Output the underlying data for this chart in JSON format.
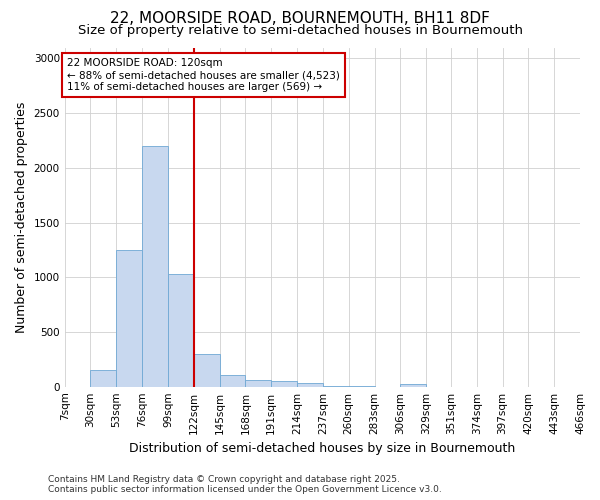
{
  "title_line1": "22, MOORSIDE ROAD, BOURNEMOUTH, BH11 8DF",
  "title_line2": "Size of property relative to semi-detached houses in Bournemouth",
  "xlabel": "Distribution of semi-detached houses by size in Bournemouth",
  "ylabel": "Number of semi-detached properties",
  "bin_labels": [
    "7sqm",
    "30sqm",
    "53sqm",
    "76sqm",
    "99sqm",
    "122sqm",
    "145sqm",
    "168sqm",
    "191sqm",
    "214sqm",
    "237sqm",
    "260sqm",
    "283sqm",
    "306sqm",
    "329sqm",
    "351sqm",
    "374sqm",
    "397sqm",
    "420sqm",
    "443sqm",
    "466sqm"
  ],
  "bin_edges": [
    7,
    30,
    53,
    76,
    99,
    122,
    145,
    168,
    191,
    214,
    237,
    260,
    283,
    306,
    329,
    351,
    374,
    397,
    420,
    443,
    466
  ],
  "bar_heights": [
    0,
    150,
    1250,
    2200,
    1030,
    300,
    110,
    60,
    50,
    30,
    10,
    5,
    0,
    25,
    0,
    0,
    0,
    0,
    0,
    0
  ],
  "bar_color": "#c8d8ef",
  "bar_edge_color": "#6fa8d4",
  "red_line_x": 122,
  "ylim": [
    0,
    3100
  ],
  "yticks": [
    0,
    500,
    1000,
    1500,
    2000,
    2500,
    3000
  ],
  "annotation_title": "22 MOORSIDE ROAD: 120sqm",
  "annotation_line1": "← 88% of semi-detached houses are smaller (4,523)",
  "annotation_line2": "11% of semi-detached houses are larger (569) →",
  "annotation_box_color": "#ffffff",
  "annotation_box_edge_color": "#cc0000",
  "footnote_line1": "Contains HM Land Registry data © Crown copyright and database right 2025.",
  "footnote_line2": "Contains public sector information licensed under the Open Government Licence v3.0.",
  "background_color": "#ffffff",
  "plot_bg_color": "#ffffff",
  "title_fontsize": 11,
  "subtitle_fontsize": 9.5,
  "label_fontsize": 9,
  "tick_fontsize": 7.5,
  "annotation_fontsize": 7.5,
  "footnote_fontsize": 6.5
}
